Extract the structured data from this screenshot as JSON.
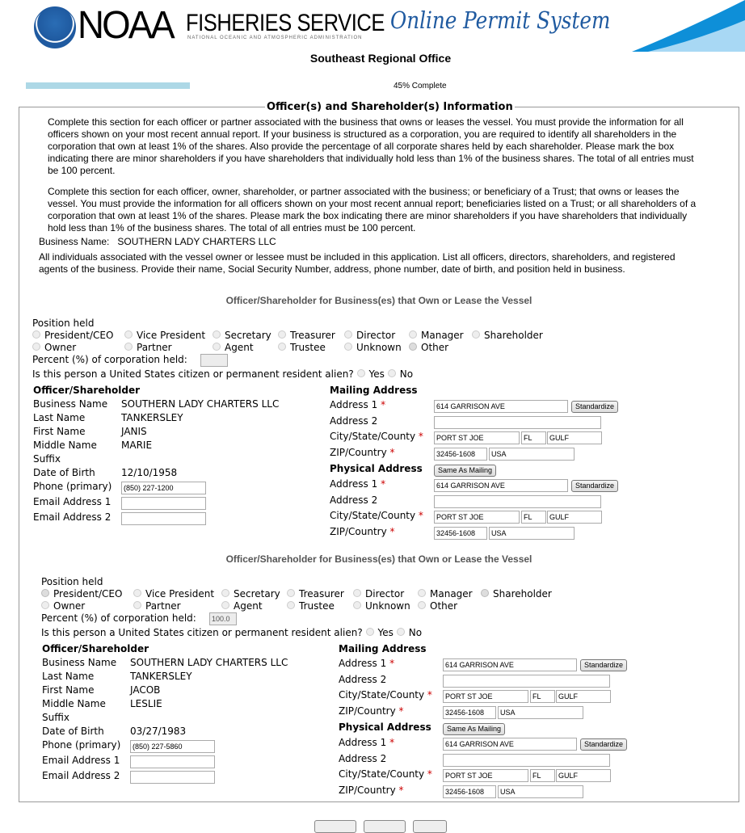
{
  "header": {
    "logo_text": "NOAA",
    "service": "FISHERIES SERVICE",
    "agency": "NATIONAL OCEANIC AND ATMOSPHERIC ADMINISTRATION",
    "system": "Online Permit System",
    "office": "Southeast Regional Office"
  },
  "progress": {
    "percent": 45,
    "label": "45% Complete"
  },
  "section": {
    "title": "Officer(s) and Shareholder(s) Information",
    "para1": "Complete this section for each officer or partner associated with the business that owns or leases the vessel. You must provide the information for all officers shown on your most recent annual report. If your business is structured as a corporation, you are required to identify all shareholders in the corporation that own at least 1% of the shares. Also provide the percentage of all corporate shares held by each shareholder. Please mark the box indicating there are minor shareholders if you have shareholders that individually hold less than 1% of the business shares. The total of all entries must be 100 percent.",
    "para2": "Complete this section for each officer, owner, shareholder, or partner associated with the business; or beneficiary of a Trust; that owns or leases the vessel. You must provide the information for all officers shown on your most recent annual report; beneficiaries listed on a Trust; or all shareholders of a corporation that own at least 1% of the shares. Please mark the box indicating there are minor shareholders if you have shareholders that individually hold less than 1% of the business shares. The total of all entries must be 100 percent.",
    "business_name_label": "Business Name:",
    "business_name": "SOUTHERN LADY CHARTERS LLC",
    "para3": "All individuals associated with the vessel owner or lessee must be included in this application. List all officers, directors, shareholders, and registered agents of the business. Provide their name, Social Security Number, address, phone number, date of birth, and position held in business."
  },
  "labels": {
    "subheading": "Officer/Shareholder for Business(es) that Own or Lease the Vessel",
    "position_held": "Position held",
    "positions": [
      "President/CEO",
      "Vice President",
      "Secretary",
      "Treasurer",
      "Director",
      "Manager",
      "Shareholder",
      "Owner",
      "Partner",
      "Agent",
      "Trustee",
      "Unknown",
      "Other"
    ],
    "percent": "Percent (%) of corporation held:",
    "citizen": "Is this person a United States citizen or permanent resident alien?",
    "yes": "Yes",
    "no": "No",
    "officer": "Officer/Shareholder",
    "business_name": "Business Name",
    "last_name": "Last Name",
    "first_name": "First Name",
    "middle_name": "Middle Name",
    "suffix": "Suffix",
    "dob": "Date of Birth",
    "phone": "Phone (primary)",
    "email1": "Email Address 1",
    "email2": "Email Address 2",
    "mailing": "Mailing Address",
    "physical": "Physical Address",
    "address1": "Address 1",
    "address2": "Address 2",
    "city": "City/State/County",
    "zip": "ZIP/Country",
    "standardize": "Standardize",
    "same_as_mailing": "Same As Mailing"
  },
  "people": [
    {
      "position": "Other",
      "percent": "",
      "business": "SOUTHERN LADY CHARTERS LLC",
      "last": "TANKERSLEY",
      "first": "JANIS",
      "middle": "MARIE",
      "suffix": "",
      "dob": "12/10/1958",
      "phone": "(850) 227-1200",
      "email1": "",
      "email2": "",
      "mailing": {
        "address1": "614 GARRISON AVE",
        "address2": "",
        "city": "PORT ST JOE",
        "state": "FL",
        "county": "GULF",
        "zip": "32456-1608",
        "country": "USA"
      },
      "physical": {
        "address1": "614 GARRISON AVE",
        "address2": "",
        "city": "PORT ST JOE",
        "state": "FL",
        "county": "GULF",
        "zip": "32456-1608",
        "country": "USA"
      }
    },
    {
      "position": "President/CEO, Shareholder",
      "percent": "100.0",
      "business": "SOUTHERN LADY CHARTERS LLC",
      "last": "TANKERSLEY",
      "first": "JACOB",
      "middle": "LESLIE",
      "suffix": "",
      "dob": "03/27/1983",
      "phone": "(850) 227-5860",
      "email1": "",
      "email2": "",
      "mailing": {
        "address1": "614 GARRISON AVE",
        "address2": "",
        "city": "PORT ST JOE",
        "state": "FL",
        "county": "GULF",
        "zip": "32456-1608",
        "country": "USA"
      },
      "physical": {
        "address1": "614 GARRISON AVE",
        "address2": "",
        "city": "PORT ST JOE",
        "state": "FL",
        "county": "GULF",
        "zip": "32456-1608",
        "country": "USA"
      }
    }
  ]
}
